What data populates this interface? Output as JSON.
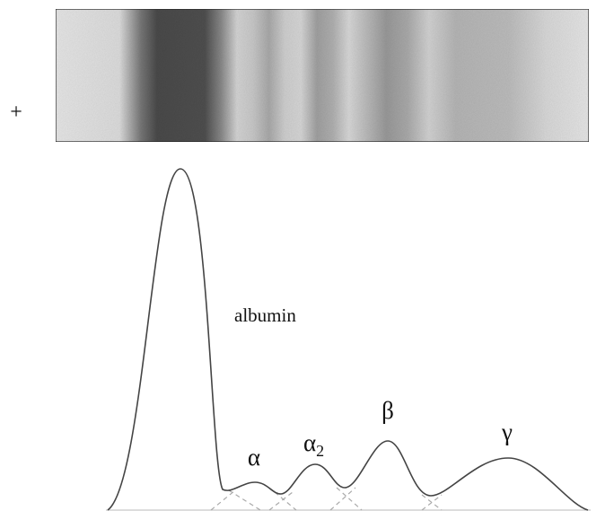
{
  "strip_sign": "+",
  "labels": {
    "albumin": "albumin",
    "alpha1": "α",
    "alpha2": {
      "symbol": "α",
      "subscript": "2"
    },
    "beta": "β",
    "gamma": "γ"
  }
}
